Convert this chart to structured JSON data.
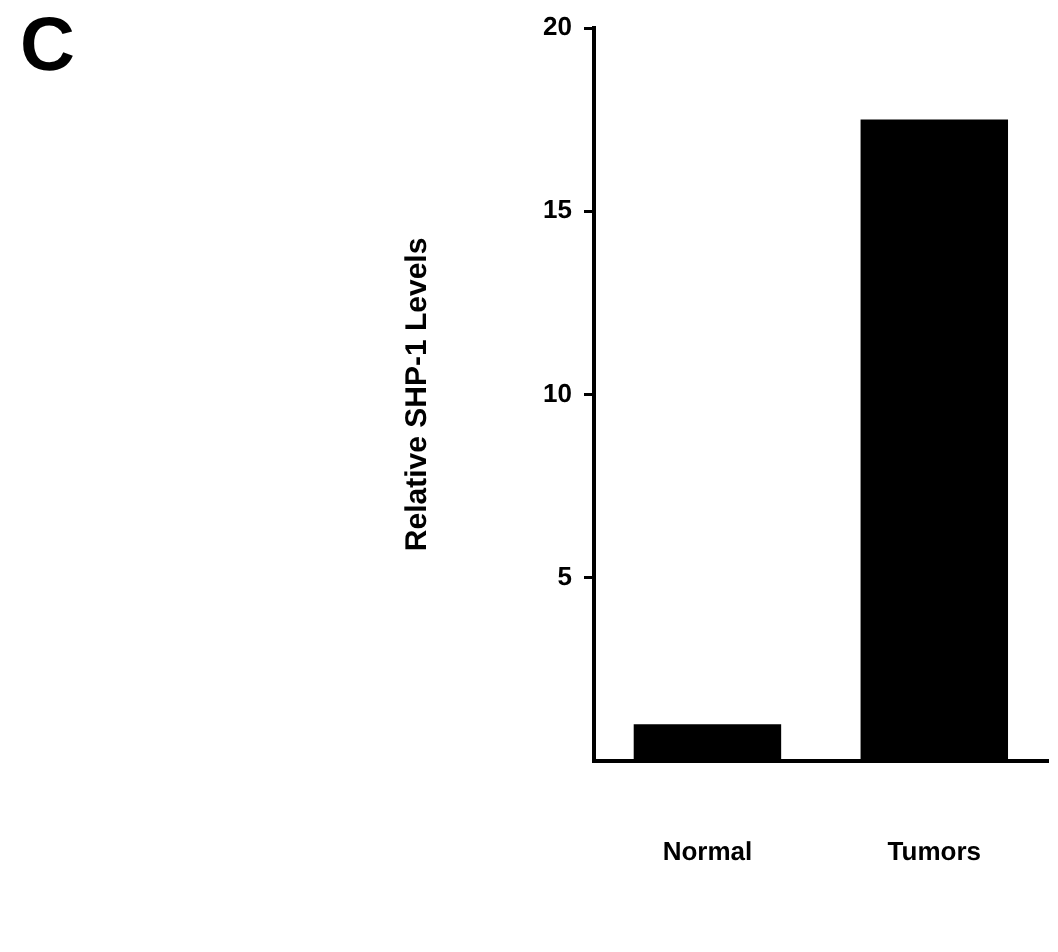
{
  "chart_data": {
    "type": "bar",
    "title": "C",
    "ylabel": "Relative SHP-1 Levels",
    "categories": [
      "Normal",
      "Tumors"
    ],
    "values": [
      1.0,
      17.5
    ],
    "color": "#000000",
    "ylim": [
      0,
      20
    ],
    "yticks": [
      5,
      10,
      15,
      20
    ],
    "grid": false,
    "legend": false
  }
}
